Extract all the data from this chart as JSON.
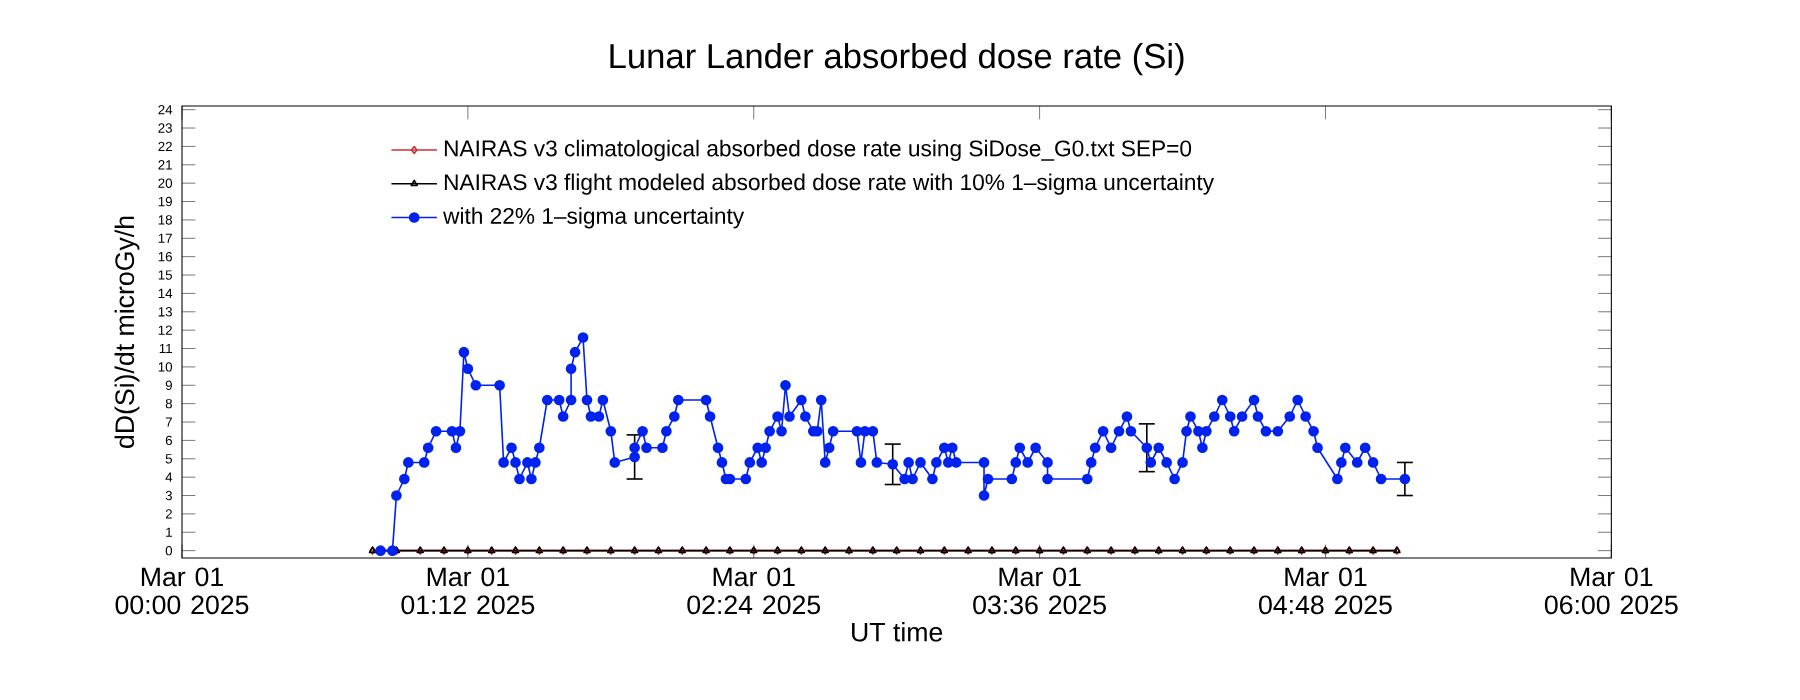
{
  "chart_data": {
    "type": "line",
    "title": "Lunar Lander absorbed dose rate (Si)",
    "xlabel": "UT time",
    "ylabel": "dD(Si)/dt microGy/h",
    "xlim": [
      "2025-03-01T00:00",
      "2025-03-01T06:00"
    ],
    "xticks": [
      {
        "value": "2025-03-01T00:00",
        "label": "Mar 01 00:00 2025"
      },
      {
        "value": "2025-03-01T01:12",
        "label": "Mar 01 01:12 2025"
      },
      {
        "value": "2025-03-01T02:24",
        "label": "Mar 01 02:24 2025"
      },
      {
        "value": "2025-03-01T03:36",
        "label": "Mar 01 03:36 2025"
      },
      {
        "value": "2025-03-01T04:48",
        "label": "Mar 01 04:48 2025"
      },
      {
        "value": "2025-03-01T06:00",
        "label": "Mar 01 06:00 2025"
      }
    ],
    "ylim": [
      -0.4,
      24.2
    ],
    "yticks": [
      0,
      1,
      2,
      3,
      4,
      5,
      6,
      7,
      8,
      9,
      10,
      11,
      12,
      13,
      14,
      15,
      16,
      17,
      18,
      19,
      20,
      21,
      22,
      23,
      24
    ],
    "legend": "top left",
    "series": [
      {
        "name": "NAIRAS v3 climatological absorbed dose rate using SiDose_G0.txt SEP=0",
        "color": "#cc3333",
        "marker": "diamond",
        "x": [
          "2025-03-01T00:48",
          "2025-03-01T00:54",
          "2025-03-01T01:00",
          "2025-03-01T01:06",
          "2025-03-01T01:12",
          "2025-03-01T01:18",
          "2025-03-01T01:24",
          "2025-03-01T01:30",
          "2025-03-01T01:36",
          "2025-03-01T01:42",
          "2025-03-01T01:48",
          "2025-03-01T01:54",
          "2025-03-01T02:00",
          "2025-03-01T02:06",
          "2025-03-01T02:12",
          "2025-03-01T02:18",
          "2025-03-01T02:24",
          "2025-03-01T02:30",
          "2025-03-01T02:36",
          "2025-03-01T02:42",
          "2025-03-01T02:48",
          "2025-03-01T02:54",
          "2025-03-01T03:00",
          "2025-03-01T03:06",
          "2025-03-01T03:12",
          "2025-03-01T03:18",
          "2025-03-01T03:24",
          "2025-03-01T03:30",
          "2025-03-01T03:36",
          "2025-03-01T03:42",
          "2025-03-01T03:48",
          "2025-03-01T03:54",
          "2025-03-01T04:00",
          "2025-03-01T04:06",
          "2025-03-01T04:12",
          "2025-03-01T04:18",
          "2025-03-01T04:24",
          "2025-03-01T04:30",
          "2025-03-01T04:36",
          "2025-03-01T04:42",
          "2025-03-01T04:48",
          "2025-03-01T04:54",
          "2025-03-01T05:00",
          "2025-03-01T05:06"
        ],
        "values": [
          0,
          0,
          0,
          0,
          0,
          0,
          0,
          0,
          0,
          0,
          0,
          0,
          0,
          0,
          0,
          0,
          0,
          0,
          0,
          0,
          0,
          0,
          0,
          0,
          0,
          0,
          0,
          0,
          0,
          0,
          0,
          0,
          0,
          0,
          0,
          0,
          0,
          0,
          0,
          0,
          0,
          0,
          0,
          0
        ]
      },
      {
        "name": "NAIRAS v3 flight modeled absorbed dose rate with 10% 1–sigma uncertainty",
        "color": "#000000",
        "marker": "triangle",
        "x": [
          "2025-03-01T00:48",
          "2025-03-01T00:54",
          "2025-03-01T01:00",
          "2025-03-01T01:06",
          "2025-03-01T01:12",
          "2025-03-01T01:18",
          "2025-03-01T01:24",
          "2025-03-01T01:30",
          "2025-03-01T01:36",
          "2025-03-01T01:42",
          "2025-03-01T01:48",
          "2025-03-01T01:54",
          "2025-03-01T02:00",
          "2025-03-01T02:06",
          "2025-03-01T02:12",
          "2025-03-01T02:18",
          "2025-03-01T02:24",
          "2025-03-01T02:30",
          "2025-03-01T02:36",
          "2025-03-01T02:42",
          "2025-03-01T02:48",
          "2025-03-01T02:54",
          "2025-03-01T03:00",
          "2025-03-01T03:06",
          "2025-03-01T03:12",
          "2025-03-01T03:18",
          "2025-03-01T03:24",
          "2025-03-01T03:30",
          "2025-03-01T03:36",
          "2025-03-01T03:42",
          "2025-03-01T03:48",
          "2025-03-01T03:54",
          "2025-03-01T04:00",
          "2025-03-01T04:06",
          "2025-03-01T04:12",
          "2025-03-01T04:18",
          "2025-03-01T04:24",
          "2025-03-01T04:30",
          "2025-03-01T04:36",
          "2025-03-01T04:42",
          "2025-03-01T04:48",
          "2025-03-01T04:54",
          "2025-03-01T05:00",
          "2025-03-01T05:06"
        ],
        "values": [
          0,
          0,
          0,
          0,
          0,
          0,
          0,
          0,
          0,
          0,
          0,
          0,
          0,
          0,
          0,
          0,
          0,
          0,
          0,
          0,
          0,
          0,
          0,
          0,
          0,
          0,
          0,
          0,
          0,
          0,
          0,
          0,
          0,
          0,
          0,
          0,
          0,
          0,
          0,
          0,
          0,
          0,
          0,
          0
        ]
      },
      {
        "name": "with 22% 1–sigma uncertainty",
        "color": "#0022ee",
        "marker": "circle",
        "x": [
          "2025-03-01T00:50",
          "2025-03-01T00:53",
          "2025-03-01T00:54",
          "2025-03-01T00:56",
          "2025-03-01T00:57",
          "2025-03-01T01:01",
          "2025-03-01T01:02",
          "2025-03-01T01:04",
          "2025-03-01T01:08",
          "2025-03-01T01:09",
          "2025-03-01T01:10",
          "2025-03-01T01:11",
          "2025-03-01T01:12",
          "2025-03-01T01:14",
          "2025-03-01T01:20",
          "2025-03-01T01:21",
          "2025-03-01T01:23",
          "2025-03-01T01:24",
          "2025-03-01T01:25",
          "2025-03-01T01:27",
          "2025-03-01T01:28",
          "2025-03-01T01:29",
          "2025-03-01T01:30",
          "2025-03-01T01:32",
          "2025-03-01T01:35",
          "2025-03-01T01:36",
          "2025-03-01T01:38",
          "2025-03-01T01:38",
          "2025-03-01T01:39",
          "2025-03-01T01:41",
          "2025-03-01T01:42",
          "2025-03-01T01:43",
          "2025-03-01T01:45",
          "2025-03-01T01:46",
          "2025-03-01T01:48",
          "2025-03-01T01:49",
          "2025-03-01T01:54",
          "2025-03-01T01:54",
          "2025-03-01T01:56",
          "2025-03-01T01:57",
          "2025-03-01T02:01",
          "2025-03-01T02:02",
          "2025-03-01T02:04",
          "2025-03-01T02:05",
          "2025-03-01T02:12",
          "2025-03-01T02:13",
          "2025-03-01T02:15",
          "2025-03-01T02:16",
          "2025-03-01T02:17",
          "2025-03-01T02:18",
          "2025-03-01T02:22",
          "2025-03-01T02:23",
          "2025-03-01T02:25",
          "2025-03-01T02:26",
          "2025-03-01T02:27",
          "2025-03-01T02:28",
          "2025-03-01T02:30",
          "2025-03-01T02:31",
          "2025-03-01T02:32",
          "2025-03-01T02:33",
          "2025-03-01T02:36",
          "2025-03-01T02:37",
          "2025-03-01T02:39",
          "2025-03-01T02:40",
          "2025-03-01T02:41",
          "2025-03-01T02:42",
          "2025-03-01T02:43",
          "2025-03-01T02:44",
          "2025-03-01T02:50",
          "2025-03-01T02:51",
          "2025-03-01T02:52",
          "2025-03-01T02:54",
          "2025-03-01T02:55",
          "2025-03-01T02:59",
          "2025-03-01T03:02",
          "2025-03-01T03:03",
          "2025-03-01T03:04",
          "2025-03-01T03:06",
          "2025-03-01T03:09",
          "2025-03-01T03:10",
          "2025-03-01T03:12",
          "2025-03-01T03:13",
          "2025-03-01T03:14",
          "2025-03-01T03:15",
          "2025-03-01T03:22",
          "2025-03-01T03:22",
          "2025-03-01T03:23",
          "2025-03-01T03:29",
          "2025-03-01T03:30",
          "2025-03-01T03:31",
          "2025-03-01T03:33",
          "2025-03-01T03:35",
          "2025-03-01T03:38",
          "2025-03-01T03:38",
          "2025-03-01T03:48",
          "2025-03-01T03:49",
          "2025-03-01T03:50",
          "2025-03-01T03:52",
          "2025-03-01T03:54",
          "2025-03-01T03:56",
          "2025-03-01T03:58",
          "2025-03-01T03:59",
          "2025-03-01T04:03",
          "2025-03-01T04:04",
          "2025-03-01T04:06",
          "2025-03-01T04:08",
          "2025-03-01T04:10",
          "2025-03-01T04:12",
          "2025-03-01T04:13",
          "2025-03-01T04:14",
          "2025-03-01T04:16",
          "2025-03-01T04:17",
          "2025-03-01T04:18",
          "2025-03-01T04:20",
          "2025-03-01T04:22",
          "2025-03-01T04:24",
          "2025-03-01T04:25",
          "2025-03-01T04:27",
          "2025-03-01T04:30",
          "2025-03-01T04:31",
          "2025-03-01T04:33",
          "2025-03-01T04:36",
          "2025-03-01T04:39",
          "2025-03-01T04:41",
          "2025-03-01T04:43",
          "2025-03-01T04:45",
          "2025-03-01T04:46",
          "2025-03-01T04:51",
          "2025-03-01T04:52",
          "2025-03-01T04:53",
          "2025-03-01T04:56",
          "2025-03-01T04:58",
          "2025-03-01T05:00",
          "2025-03-01T05:02",
          "2025-03-01T05:08"
        ],
        "values": [
          0,
          0,
          3.0,
          3.9,
          4.8,
          4.8,
          5.6,
          6.5,
          6.5,
          5.6,
          6.5,
          10.8,
          9.9,
          9.0,
          9.0,
          4.8,
          5.6,
          4.8,
          3.9,
          4.8,
          3.9,
          4.8,
          5.6,
          8.2,
          8.2,
          7.3,
          8.2,
          9.9,
          10.8,
          11.6,
          8.2,
          7.3,
          7.3,
          8.2,
          6.5,
          4.8,
          5.1,
          5.6,
          6.5,
          5.6,
          5.6,
          6.5,
          7.3,
          8.2,
          8.2,
          7.3,
          5.6,
          4.8,
          3.9,
          3.9,
          3.9,
          4.8,
          5.6,
          4.8,
          5.6,
          6.5,
          7.3,
          6.5,
          9.0,
          7.3,
          8.2,
          7.3,
          6.5,
          6.5,
          8.2,
          4.8,
          5.6,
          6.5,
          6.5,
          4.8,
          6.5,
          6.5,
          4.8,
          4.7,
          3.9,
          4.8,
          3.9,
          4.8,
          3.9,
          4.8,
          5.6,
          4.8,
          5.6,
          4.8,
          4.8,
          3.0,
          3.9,
          3.9,
          4.8,
          5.6,
          4.8,
          5.6,
          4.8,
          3.9,
          3.9,
          4.8,
          5.6,
          6.5,
          5.6,
          6.5,
          7.3,
          6.5,
          5.6,
          4.8,
          5.6,
          4.8,
          3.9,
          4.8,
          6.5,
          7.3,
          6.5,
          5.6,
          6.5,
          7.3,
          8.2,
          7.3,
          6.5,
          7.3,
          8.2,
          7.3,
          6.5,
          6.5,
          7.3,
          8.2,
          7.3,
          6.5,
          5.6,
          3.9,
          4.8,
          5.6,
          4.8,
          5.6,
          4.8,
          3.9,
          3.9
        ],
        "errors": [
          null,
          null,
          null,
          null,
          null,
          null,
          null,
          null,
          null,
          null,
          null,
          null,
          null,
          null,
          null,
          null,
          null,
          null,
          null,
          null,
          null,
          null,
          null,
          null,
          null,
          null,
          null,
          null,
          null,
          null,
          null,
          null,
          null,
          null,
          null,
          null,
          1.2,
          null,
          null,
          null,
          null,
          null,
          null,
          null,
          null,
          null,
          null,
          null,
          null,
          null,
          null,
          null,
          null,
          null,
          null,
          null,
          null,
          null,
          null,
          null,
          null,
          null,
          null,
          null,
          null,
          null,
          null,
          null,
          null,
          null,
          null,
          null,
          null,
          1.1,
          null,
          null,
          null,
          null,
          null,
          null,
          null,
          null,
          null,
          null,
          null,
          null,
          null,
          null,
          null,
          null,
          null,
          null,
          null,
          null,
          null,
          null,
          null,
          null,
          null,
          null,
          null,
          null,
          1.3,
          null,
          null,
          null,
          null,
          null,
          null,
          null,
          null,
          null,
          null,
          null,
          null,
          null,
          null,
          null,
          null,
          null,
          null,
          null,
          null,
          null,
          null,
          null,
          null,
          null,
          null,
          null,
          null,
          null,
          null,
          null,
          0.9
        ]
      }
    ]
  }
}
